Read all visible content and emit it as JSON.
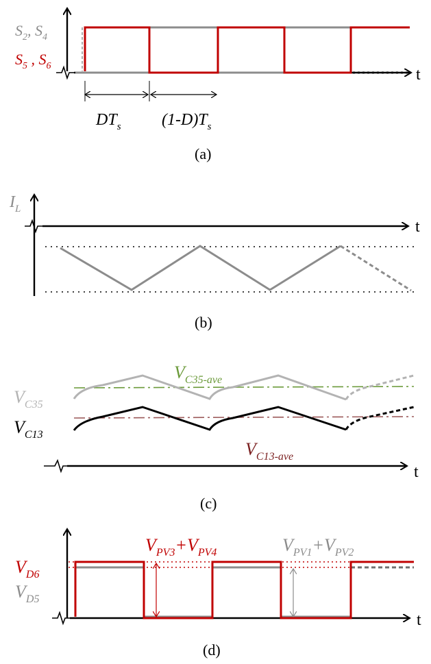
{
  "colors": {
    "axis": "#000000",
    "red": "#c00000",
    "gray": "#8c8c8c",
    "lightgray": "#b3b3b3",
    "green": "#6b9a3a",
    "brown": "#9c5a5a",
    "dark_red": "#7a1f1f"
  },
  "panel_a": {
    "caption": "(a)",
    "t_label": "t",
    "signal_gray": {
      "s": "S",
      "sub1": "2",
      "comma": ", ",
      "s2": "S",
      "sub2": "4"
    },
    "signal_red": {
      "s": "S",
      "sub1": "5",
      "comma": " , ",
      "s2": "S",
      "sub2": "6"
    },
    "dt_label": {
      "main": "DT",
      "sub": "s"
    },
    "one_minus_d_label": {
      "main": "(1-D)T",
      "sub": "s"
    }
  },
  "panel_b": {
    "caption": "(b)",
    "t_label": "t",
    "il_label": {
      "main": "I",
      "sub": "L"
    }
  },
  "panel_c": {
    "caption": "(c)",
    "t_label": "t",
    "vc35_label": {
      "main": "V",
      "sub": "C35"
    },
    "vc13_label": {
      "main": "V",
      "sub": "C13"
    },
    "vc35_ave_label": {
      "main": "V",
      "sub": "C35-ave"
    },
    "vc13_ave_label": {
      "main": "V",
      "sub": "C13-ave"
    }
  },
  "panel_d": {
    "caption": "(d)",
    "t_label": "t",
    "vd6_label": {
      "main": "V",
      "sub": "D6"
    },
    "vd5_label": {
      "main": "V",
      "sub": "D5"
    },
    "vpv34_label": {
      "v1": "V",
      "s1": "PV3",
      "plus": "+",
      "v2": "V",
      "s2": "PV4"
    },
    "vpv12_label": {
      "v1": "V",
      "s1": "PV1",
      "plus": "+",
      "v2": "V",
      "s2": "PV2"
    }
  }
}
